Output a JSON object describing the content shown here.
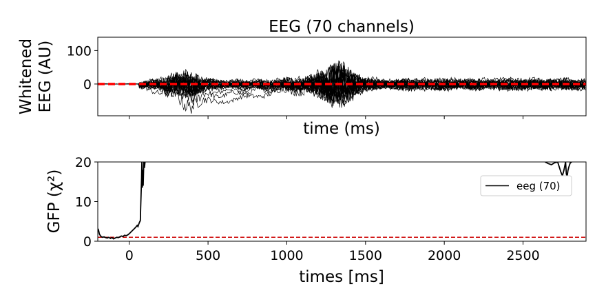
{
  "chart_data": [
    {
      "type": "line",
      "title": "EEG (70 channels)",
      "ylabel_lines": [
        "Whitened",
        "EEG (AU)"
      ],
      "xlabel": "time (ms)",
      "xlim": [
        -200,
        2900
      ],
      "ylim": [
        -95,
        140
      ],
      "yticks": [
        0,
        100
      ],
      "xticks": [
        0,
        500,
        1000,
        1500,
        2000,
        2500
      ],
      "x_ticklabels_shown": false,
      "n_channels": 70,
      "zero_line": {
        "y": 0,
        "color": "#ff0000",
        "style": "dashed"
      },
      "series_color": "#000000"
    },
    {
      "type": "line",
      "ylabel": "GFP (χ²)",
      "xlabel": "times [ms]",
      "xlim": [
        -200,
        2900
      ],
      "ylim": [
        0,
        20
      ],
      "yticks": [
        0,
        10,
        20
      ],
      "xticks": [
        0,
        500,
        1000,
        1500,
        2000,
        2500
      ],
      "legend": {
        "placement": "right",
        "entries": [
          {
            "label": "eeg (70)",
            "color": "#000000"
          }
        ]
      },
      "reference_line": {
        "y": 1,
        "color": "#cc0000",
        "style": "dashed"
      },
      "series": [
        {
          "name": "eeg (70)",
          "x": [
            -200,
            -195,
            -190,
            -180,
            -170,
            -160,
            -150,
            -140,
            -130,
            -120,
            -110,
            -100,
            -90,
            -80,
            -70,
            -60,
            -50,
            -40,
            -30,
            -20,
            -10,
            0,
            10,
            20,
            30,
            40,
            50,
            55,
            60,
            65,
            70,
            72,
            75,
            78,
            80,
            83,
            86,
            88,
            92,
            96,
            100
          ],
          "y": [
            2.4,
            2.8,
            1.8,
            1.2,
            1.0,
            1.1,
            0.9,
            0.8,
            1.0,
            0.7,
            0.9,
            0.6,
            0.8,
            1.0,
            0.9,
            1.1,
            1.3,
            1.2,
            1.5,
            1.4,
            1.6,
            1.9,
            2.3,
            2.7,
            3.1,
            3.5,
            4.0,
            3.7,
            4.3,
            4.8,
            5.2,
            8.0,
            12.0,
            16.0,
            20.0,
            13.5,
            18.0,
            14.0,
            20.0,
            18.5,
            20.0
          ]
        },
        {
          "name": "eeg (70)",
          "x": [
            2640,
            2660,
            2680,
            2700,
            2720,
            2740,
            2750,
            2760,
            2770,
            2775,
            2780,
            2785,
            2790,
            2800,
            2810
          ],
          "y": [
            20.0,
            19.6,
            19.3,
            19.8,
            20.0,
            17.5,
            16.5,
            18.0,
            20.0,
            17.0,
            16.3,
            17.8,
            18.6,
            19.8,
            20.0
          ]
        }
      ]
    }
  ]
}
